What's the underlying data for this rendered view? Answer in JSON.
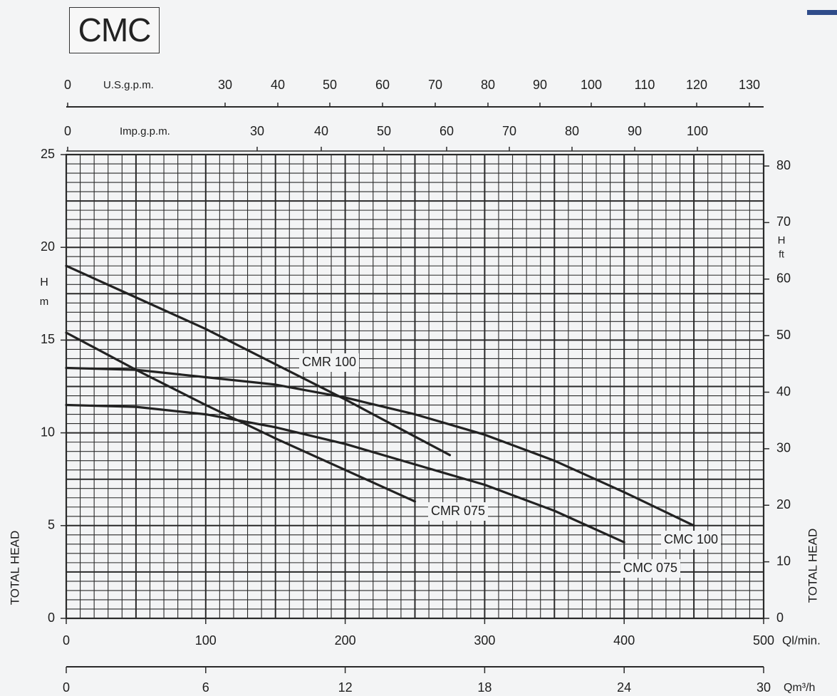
{
  "title": "CMC",
  "colors": {
    "background": "#f3f4f5",
    "grid": "#2a2a2a",
    "curve": "#222222",
    "accent": "#2f4c8a"
  },
  "chart_data": {
    "type": "line",
    "title": "CMC",
    "x_axis": {
      "label": "Ql/min.",
      "range": [
        0,
        500
      ],
      "ticks": [
        "0",
        "100",
        "200",
        "300",
        "400",
        "500"
      ]
    },
    "x_axis_secondary": {
      "label": "Qm³/h",
      "range": [
        0,
        30
      ],
      "ticks": [
        "0",
        "6",
        "12",
        "18",
        "24",
        "30"
      ]
    },
    "top_axis_usgpm": {
      "label": "U.S.g.p.m.",
      "ticks": [
        "0",
        "30",
        "40",
        "50",
        "60",
        "70",
        "80",
        "90",
        "100",
        "110",
        "120",
        "130"
      ]
    },
    "top_axis_impgpm": {
      "label": "Imp.g.p.m.",
      "ticks": [
        "0",
        "30",
        "40",
        "50",
        "60",
        "70",
        "80",
        "90",
        "100"
      ]
    },
    "y_axis_left": {
      "label": "TOTAL HEAD",
      "unit_label": "H m",
      "range": [
        0,
        25
      ],
      "ticks": [
        "0",
        "5",
        "10",
        "15",
        "20",
        "25"
      ]
    },
    "y_axis_right": {
      "label": "TOTAL HEAD",
      "unit_label": "H ft",
      "ticks": [
        "0",
        "10",
        "20",
        "30",
        "40",
        "50",
        "60",
        "70",
        "80"
      ]
    },
    "grid": true,
    "series": [
      {
        "name": "CMR 100",
        "x": [
          0,
          50,
          100,
          150,
          200,
          250,
          275
        ],
        "y": [
          19.0,
          17.3,
          15.6,
          13.7,
          11.8,
          9.8,
          8.8
        ]
      },
      {
        "name": "CMR 075",
        "x": [
          0,
          50,
          100,
          150,
          200,
          250
        ],
        "y": [
          15.4,
          13.4,
          11.5,
          9.7,
          8.0,
          6.3
        ]
      },
      {
        "name": "CMC 100",
        "x": [
          0,
          50,
          100,
          150,
          200,
          250,
          300,
          350,
          400,
          450
        ],
        "y": [
          13.5,
          13.4,
          13.0,
          12.6,
          11.9,
          11.0,
          9.9,
          8.5,
          6.8,
          5.0
        ]
      },
      {
        "name": "CMC 075",
        "x": [
          0,
          50,
          100,
          150,
          200,
          250,
          300,
          350,
          400
        ],
        "y": [
          11.5,
          11.4,
          11.0,
          10.3,
          9.4,
          8.3,
          7.2,
          5.8,
          4.1
        ]
      }
    ]
  }
}
